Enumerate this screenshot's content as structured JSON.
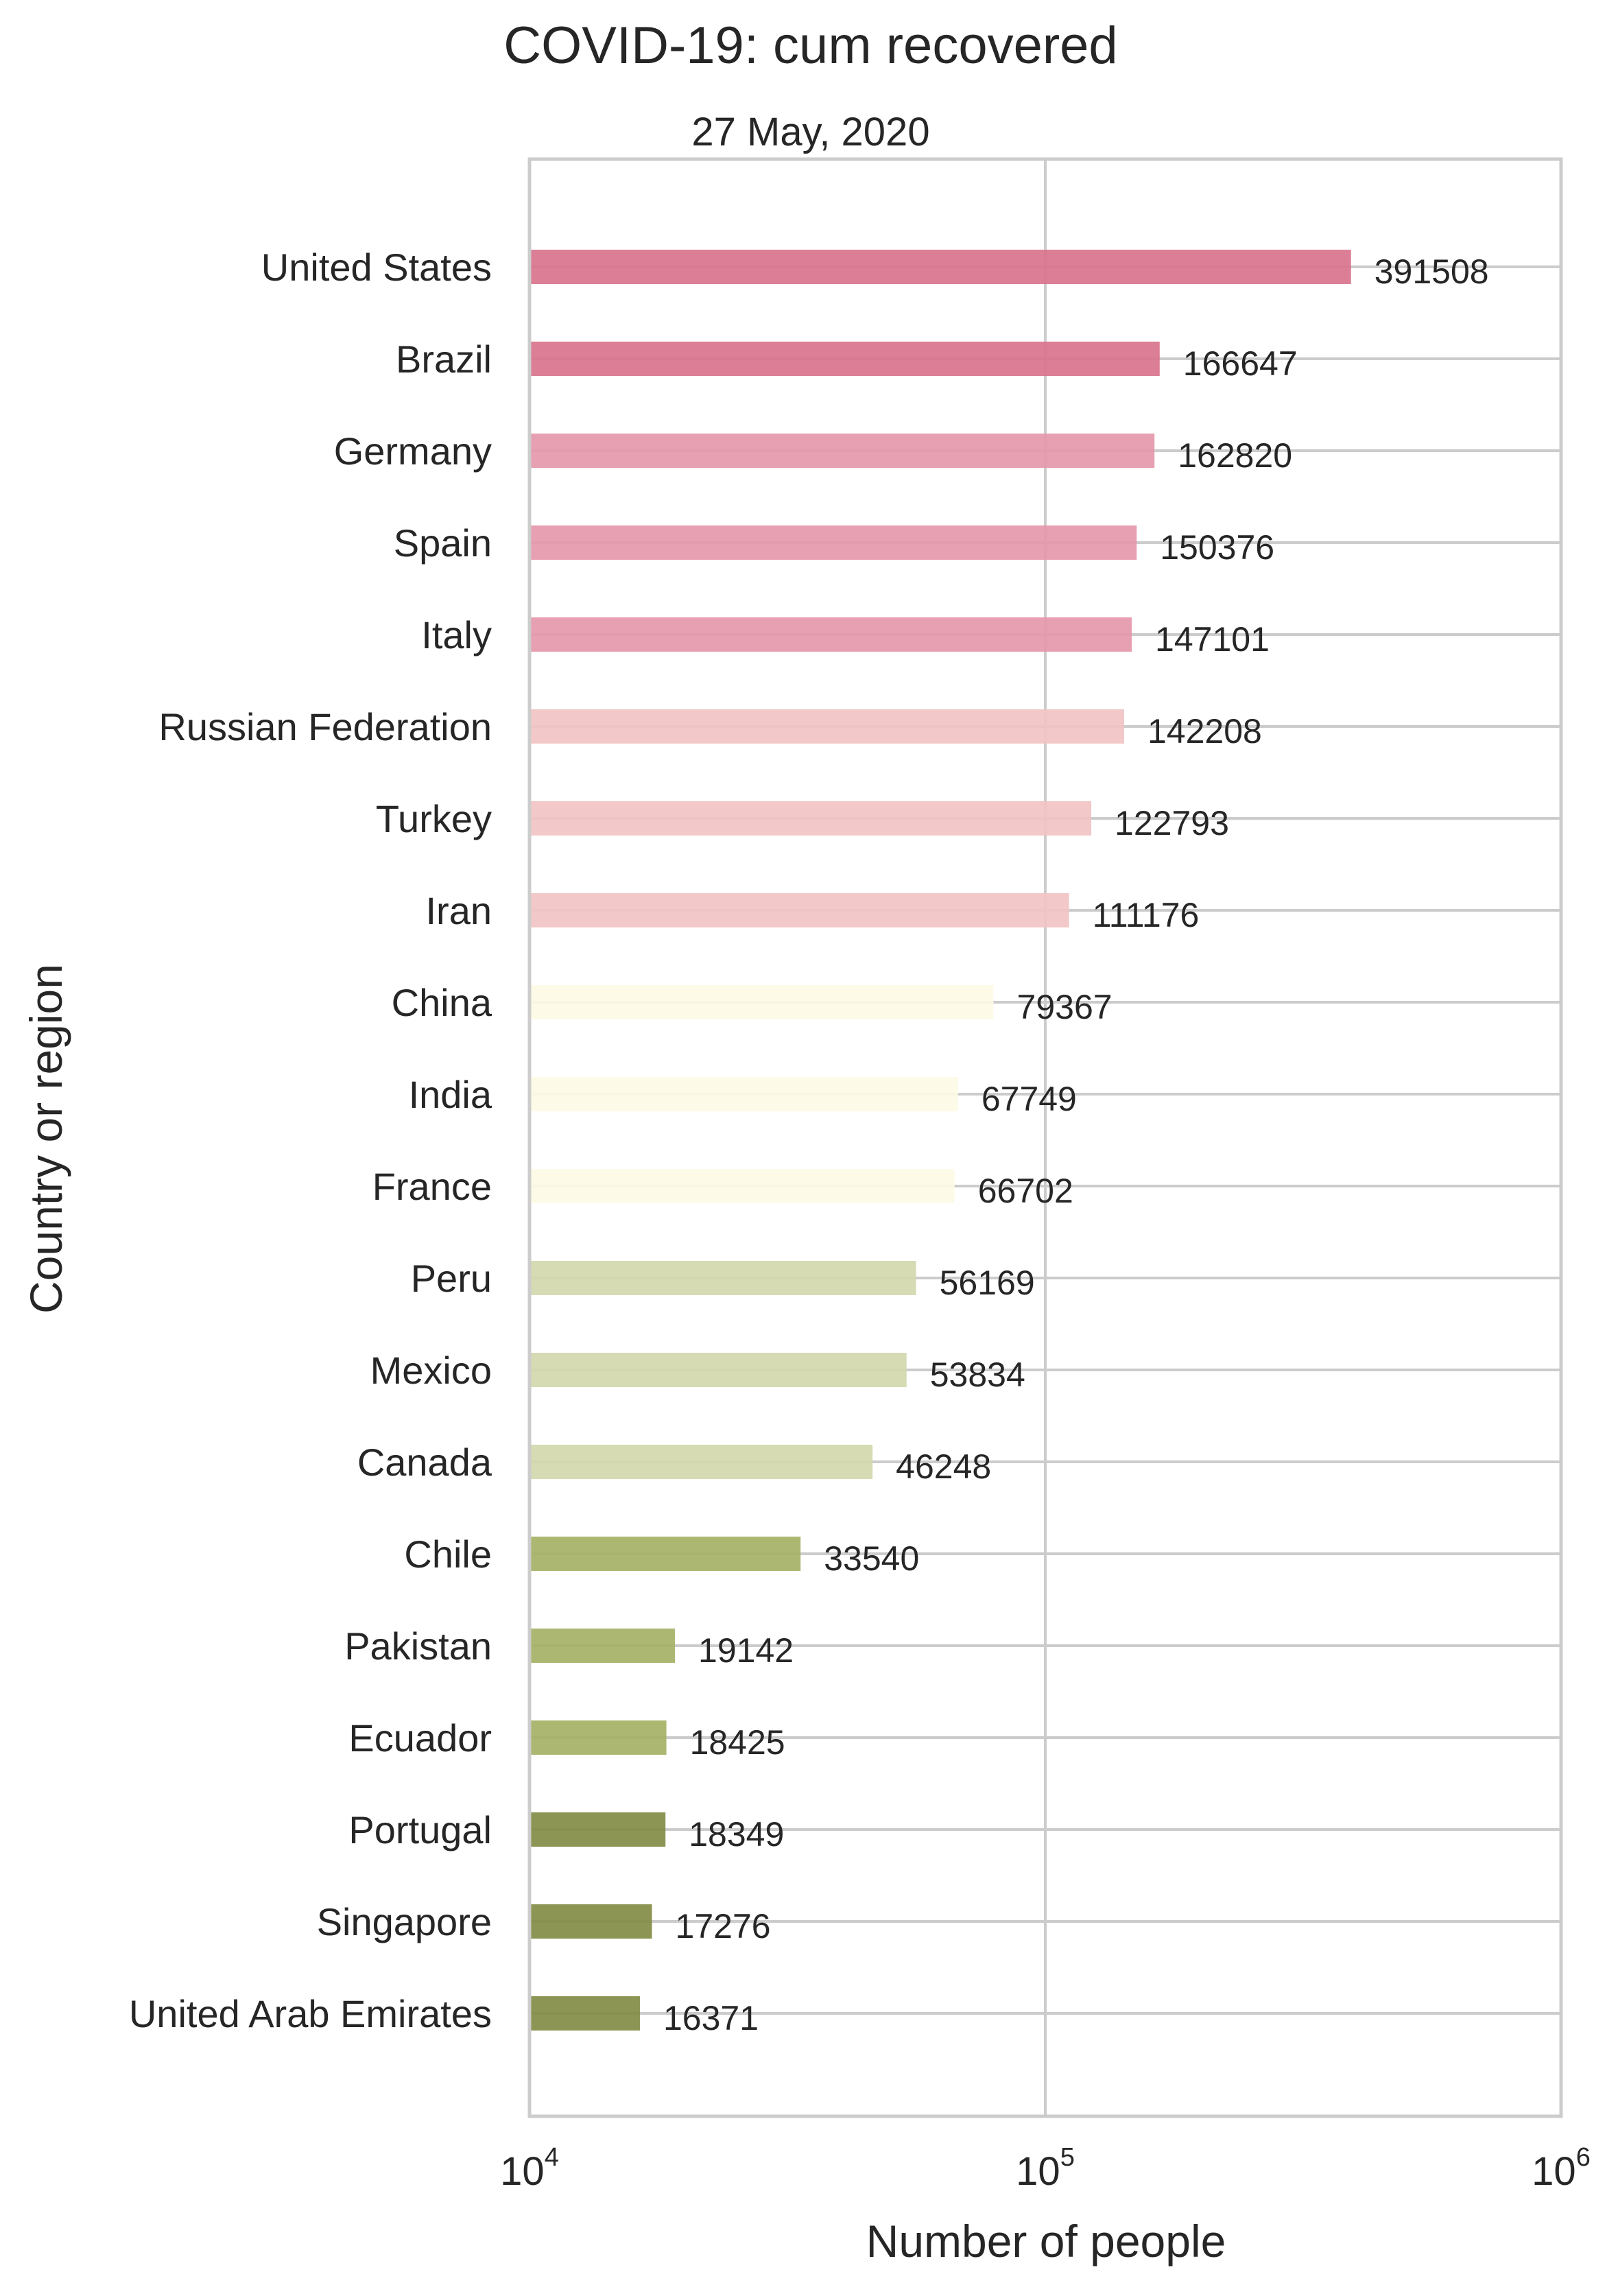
{
  "chart_data": {
    "type": "bar",
    "orientation": "horizontal",
    "title": "COVID-19:  cum recovered",
    "subtitle": "27 May, 2020",
    "xlabel": "Number of people",
    "ylabel": "Country or region",
    "xscale": "log",
    "xlim": [
      10000,
      1000000
    ],
    "xticks": [
      {
        "base": "10",
        "exp": "4"
      },
      {
        "base": "10",
        "exp": "5"
      },
      {
        "base": "10",
        "exp": "6"
      }
    ],
    "grid": true,
    "categories": [
      "United States",
      "Brazil",
      "Germany",
      "Spain",
      "Italy",
      "Russian Federation",
      "Turkey",
      "Iran",
      "China",
      "India",
      "France",
      "Peru",
      "Mexico",
      "Canada",
      "Chile",
      "Pakistan",
      "Ecuador",
      "Portugal",
      "Singapore",
      "United Arab Emirates"
    ],
    "values": [
      391508,
      166647,
      162820,
      150376,
      147101,
      142208,
      122793,
      111176,
      79367,
      67749,
      66702,
      56169,
      53834,
      46248,
      33540,
      19142,
      18425,
      18349,
      17276,
      16371
    ],
    "value_labels": [
      "391508",
      "166647",
      "162820",
      "150376",
      "147101",
      "142208",
      "122793",
      "111176",
      "79367",
      "67749",
      "66702",
      "56169",
      "53834",
      "46248",
      "33540",
      "19142",
      "18425",
      "18349",
      "17276",
      "16371"
    ],
    "colors": [
      "#d9738c",
      "#d9738c",
      "#e597ab",
      "#e597ab",
      "#e597ab",
      "#f2c3c3",
      "#f2c3c3",
      "#f2c3c3",
      "#fdfbe6",
      "#fdfbe6",
      "#fdfbe6",
      "#d2d8ad",
      "#d2d8ad",
      "#d2d8ad",
      "#a5b265",
      "#a5b265",
      "#a5b265",
      "#838c45",
      "#838c45",
      "#838c45"
    ]
  }
}
